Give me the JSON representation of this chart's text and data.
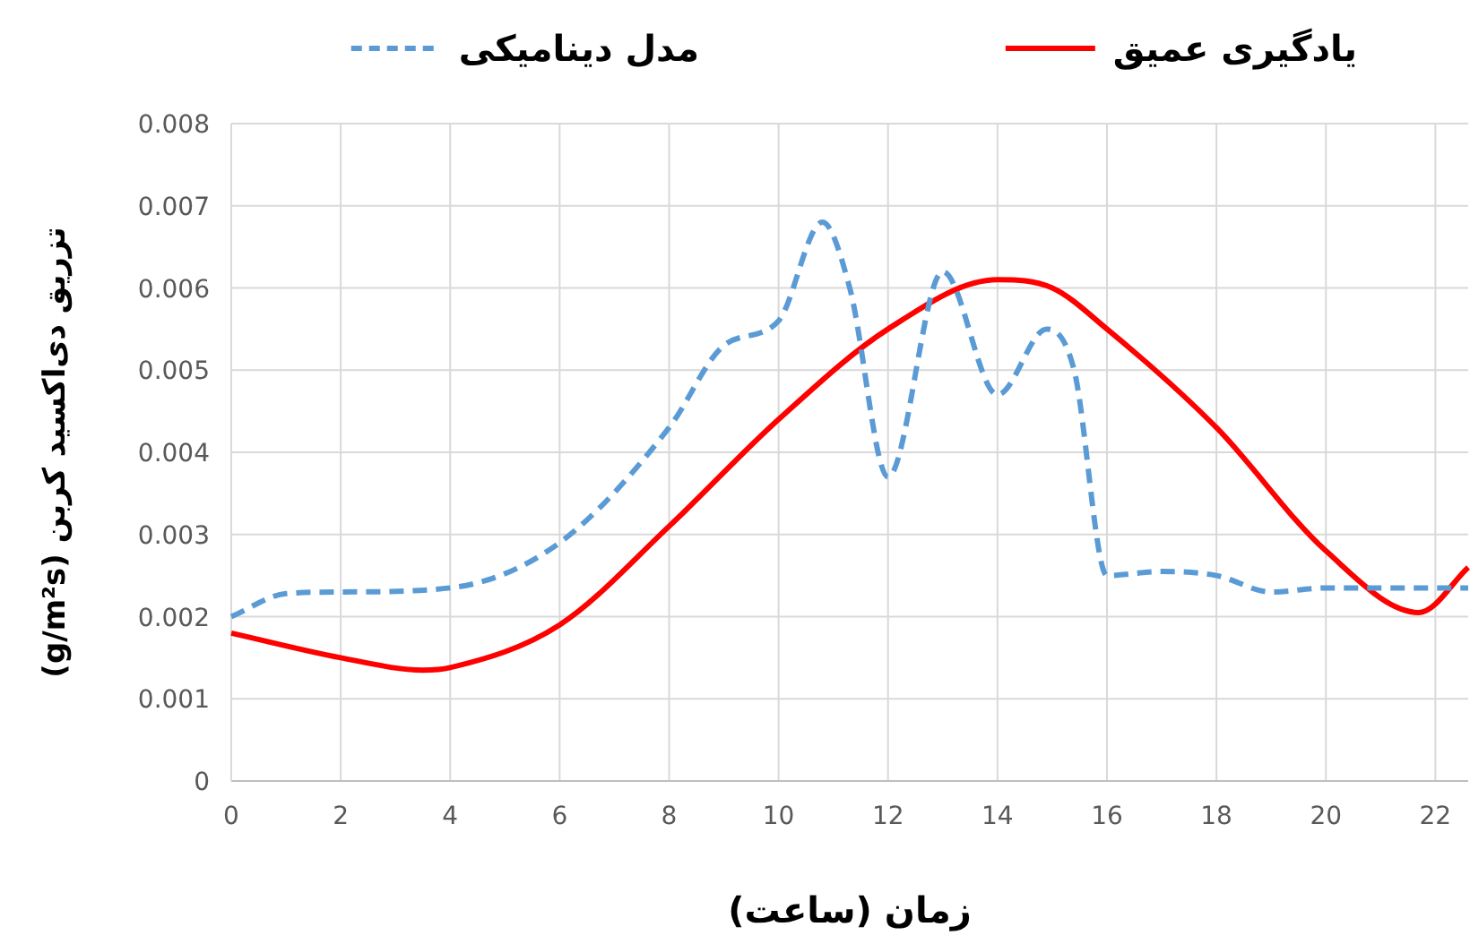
{
  "chart_data": {
    "type": "line",
    "xlabel": "زمان (ساعت)",
    "ylabel": "تزریق دی‌اکسید کربن (g/m²s)",
    "xlim": [
      0,
      22.6
    ],
    "xticks": [
      0,
      2,
      4,
      6,
      8,
      10,
      12,
      14,
      16,
      18,
      20,
      22
    ],
    "ylim": [
      0,
      0.008
    ],
    "yticks": [
      0,
      0.001,
      0.002,
      0.003,
      0.004,
      0.005,
      0.006,
      0.007,
      0.008
    ],
    "grid": true,
    "legend": "top",
    "marker": "none",
    "series": [
      {
        "name": "یادگیری عمیق",
        "color": "#ff0000",
        "line_style": "solid",
        "x": [
          0,
          2,
          3.5,
          4,
          6,
          8,
          10,
          12,
          14,
          15,
          16,
          18,
          20,
          21.7,
          22.6
        ],
        "values": [
          0.0018,
          0.0015,
          0.00135,
          0.00138,
          0.0019,
          0.0031,
          0.0044,
          0.0055,
          0.0061,
          0.006,
          0.0055,
          0.0043,
          0.0028,
          0.00205,
          0.0026
        ]
      },
      {
        "name": "مدل دینامیکی",
        "color": "#5b9bd5",
        "line_style": "dashed",
        "x": [
          0,
          1,
          2,
          4,
          6,
          8,
          9,
          10,
          10.8,
          11.3,
          12,
          13,
          14,
          14.9,
          15.4,
          16,
          17,
          18,
          19,
          20,
          22.6
        ],
        "values": [
          0.002,
          0.00228,
          0.0023,
          0.00235,
          0.0029,
          0.0043,
          0.0053,
          0.0056,
          0.0068,
          0.006,
          0.0037,
          0.0062,
          0.0047,
          0.0055,
          0.005,
          0.0025,
          0.00255,
          0.0025,
          0.0023,
          0.00235,
          0.00235
        ]
      }
    ]
  }
}
